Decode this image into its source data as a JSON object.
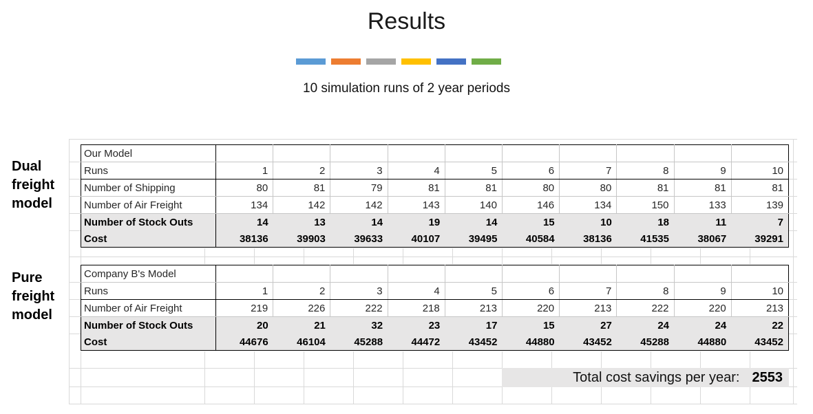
{
  "title": "Results",
  "subtitle": "10 simulation runs of 2 year periods",
  "legend_bars": {
    "colors": [
      "#5B9BD5",
      "#ED7D31",
      "#A5A5A5",
      "#FFC000",
      "#4472C4",
      "#70AD47"
    ]
  },
  "side_labels": {
    "dual": "Dual freight model",
    "pure": "Pure freight model"
  },
  "colors": {
    "row_shading": "#E7E6E6",
    "grid_line": "#D9D9D9",
    "table_border": "#000000"
  },
  "tables": [
    {
      "name": "our-model",
      "rows": [
        {
          "label": "Our Model",
          "values": [
            "",
            "",
            "",
            "",
            "",
            "",
            "",
            "",
            "",
            ""
          ]
        },
        {
          "label": "Runs",
          "values": [
            1,
            2,
            3,
            4,
            5,
            6,
            7,
            8,
            9,
            10
          ],
          "thick_bottom": true
        },
        {
          "label": "Number of Shipping",
          "values": [
            80,
            81,
            79,
            81,
            81,
            80,
            80,
            81,
            81,
            81
          ]
        },
        {
          "label": "Number of Air Freight",
          "values": [
            134,
            142,
            142,
            143,
            140,
            146,
            134,
            150,
            133,
            139
          ]
        },
        {
          "label": "Number of Stock Outs",
          "values": [
            14,
            13,
            14,
            19,
            14,
            15,
            10,
            18,
            11,
            7
          ],
          "bold": true,
          "shaded": true
        },
        {
          "label": "Cost",
          "values": [
            38136,
            39903,
            39633,
            40107,
            39495,
            40584,
            38136,
            41535,
            38067,
            39291
          ],
          "bold": true,
          "shaded": true
        }
      ]
    },
    {
      "name": "company-b-model",
      "rows": [
        {
          "label": "Company B's Model",
          "values": [
            "",
            "",
            "",
            "",
            "",
            "",
            "",
            "",
            "",
            ""
          ]
        },
        {
          "label": "Runs",
          "values": [
            1,
            2,
            3,
            4,
            5,
            6,
            7,
            8,
            9,
            10
          ],
          "thick_bottom": true
        },
        {
          "label": "Number of Air Freight",
          "values": [
            219,
            226,
            222,
            218,
            213,
            220,
            213,
            222,
            220,
            213
          ]
        },
        {
          "label": "Number of Stock Outs",
          "values": [
            20,
            21,
            32,
            23,
            17,
            15,
            27,
            24,
            24,
            22
          ],
          "bold": true,
          "shaded": true
        },
        {
          "label": "Cost",
          "values": [
            44676,
            46104,
            45288,
            44472,
            43452,
            44880,
            43452,
            45288,
            44880,
            43452
          ],
          "bold": true,
          "shaded": true
        }
      ]
    }
  ],
  "total": {
    "label": "Total cost savings per year:",
    "value": "2553"
  }
}
